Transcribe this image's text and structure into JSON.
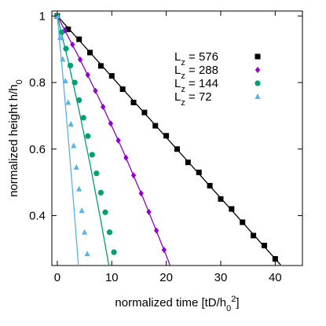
{
  "chart_data": {
    "type": "scatter",
    "x_label": [
      {
        "text": "normalized time [tD/h"
      },
      {
        "text": "0",
        "sub": true
      },
      {
        "text": "2",
        "sup": true
      },
      {
        "text": "]"
      }
    ],
    "y_label": [
      {
        "text": "normalized height h/h"
      },
      {
        "text": "0",
        "sub": true
      }
    ],
    "xlim": [
      -1,
      45
    ],
    "ylim": [
      0.25,
      1.015
    ],
    "xticks": [
      0,
      10,
      20,
      30,
      40
    ],
    "yticks": [
      0.4,
      0.6,
      0.8,
      1
    ],
    "legend": "upper right",
    "series": [
      {
        "name": [
          {
            "text": "L"
          },
          {
            "text": "z",
            "sub": true
          },
          {
            "text": " = 576"
          }
        ],
        "color": "#000000",
        "marker": "square",
        "x": [
          0,
          2,
          4,
          6,
          8,
          10,
          12,
          14,
          16,
          18,
          20,
          22,
          24,
          26,
          28,
          30,
          32,
          34,
          36,
          38,
          40
        ],
        "values": [
          1,
          0.96,
          0.93,
          0.89,
          0.85,
          0.82,
          0.78,
          0.74,
          0.71,
          0.67,
          0.64,
          0.6,
          0.56,
          0.53,
          0.49,
          0.45,
          0.42,
          0.38,
          0.34,
          0.31,
          0.27
        ],
        "fit_x": [
          0,
          41
        ],
        "fit_values": [
          1,
          0.252
        ]
      },
      {
        "name": [
          {
            "text": "L"
          },
          {
            "text": "z",
            "sub": true
          },
          {
            "text": " = 288"
          }
        ],
        "color": "#9400d3",
        "marker": "diamond",
        "x": [
          0,
          1.4,
          2.8,
          4.2,
          5.6,
          7,
          8.4,
          9.8,
          11.2,
          12.6,
          14,
          15.4,
          16.8,
          18.2,
          19.6
        ],
        "values": [
          1,
          0.957,
          0.914,
          0.869,
          0.823,
          0.775,
          0.727,
          0.677,
          0.626,
          0.574,
          0.521,
          0.467,
          0.411,
          0.355,
          0.297
        ],
        "fit_x": [
          0,
          4,
          8,
          12,
          16,
          20,
          20.7
        ],
        "fit_values": [
          1,
          0.875,
          0.741,
          0.597,
          0.443,
          0.28,
          0.25
        ]
      },
      {
        "name": [
          {
            "text": "L"
          },
          {
            "text": "z",
            "sub": true
          },
          {
            "text": " = 144"
          }
        ],
        "color": "#009e73",
        "marker": "circle",
        "x": [
          0,
          0.8,
          1.6,
          2.4,
          3.2,
          4,
          4.8,
          5.6,
          6.4,
          7.2,
          8,
          8.8,
          9.6,
          10.4
        ],
        "values": [
          1,
          0.951,
          0.902,
          0.851,
          0.8,
          0.747,
          0.694,
          0.639,
          0.583,
          0.527,
          0.469,
          0.41,
          0.35,
          0.29
        ],
        "fit_x": [
          0,
          2,
          4,
          6,
          8,
          9.47
        ],
        "fit_values": [
          1,
          0.864,
          0.716,
          0.556,
          0.384,
          0.25
        ]
      },
      {
        "name": [
          {
            "text": "L"
          },
          {
            "text": "z",
            "sub": true
          },
          {
            "text": " =   72"
          }
        ],
        "color": "#56b4e9",
        "marker": "triangle",
        "x": [
          0,
          0.5,
          1,
          1.5,
          2,
          2.5,
          3,
          3.5,
          4,
          4.5,
          5,
          5.5
        ],
        "values": [
          1,
          0.935,
          0.87,
          0.805,
          0.74,
          0.675,
          0.61,
          0.545,
          0.48,
          0.415,
          0.35,
          0.285
        ],
        "fit_x": [
          0,
          1,
          2,
          3,
          3.9
        ],
        "fit_values": [
          1,
          0.824,
          0.636,
          0.436,
          0.246
        ]
      }
    ]
  }
}
